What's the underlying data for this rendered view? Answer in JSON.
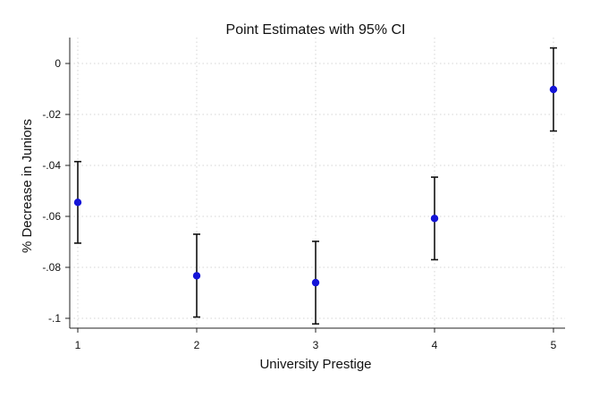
{
  "chart_data": {
    "type": "scatter",
    "title": "Point Estimates with 95% CI",
    "xlabel": "University Prestige",
    "ylabel": "% Decrease in Juniors",
    "x": [
      1,
      2,
      3,
      4,
      5
    ],
    "y": [
      -0.0545,
      -0.0833,
      -0.086,
      -0.0608,
      -0.0102
    ],
    "ci_lower": [
      -0.0705,
      -0.0995,
      -0.1022,
      -0.077,
      -0.0265
    ],
    "ci_upper": [
      -0.0385,
      -0.067,
      -0.0698,
      -0.0446,
      0.0061
    ],
    "xticks": [
      1,
      2,
      3,
      4,
      5
    ],
    "xtick_labels": [
      "1",
      "2",
      "3",
      "4",
      "5"
    ],
    "yticks": [
      0,
      -0.02,
      -0.04,
      -0.06,
      -0.08,
      -0.1
    ],
    "ytick_labels": [
      "0",
      "-.02",
      "-.04",
      "-.06",
      "-.08",
      "-.1"
    ],
    "xlim": [
      1,
      5
    ],
    "ylim": [
      -0.105,
      0.007
    ],
    "grid": true,
    "marker_color": "#1414d8",
    "errorbar_color": "#111111"
  }
}
